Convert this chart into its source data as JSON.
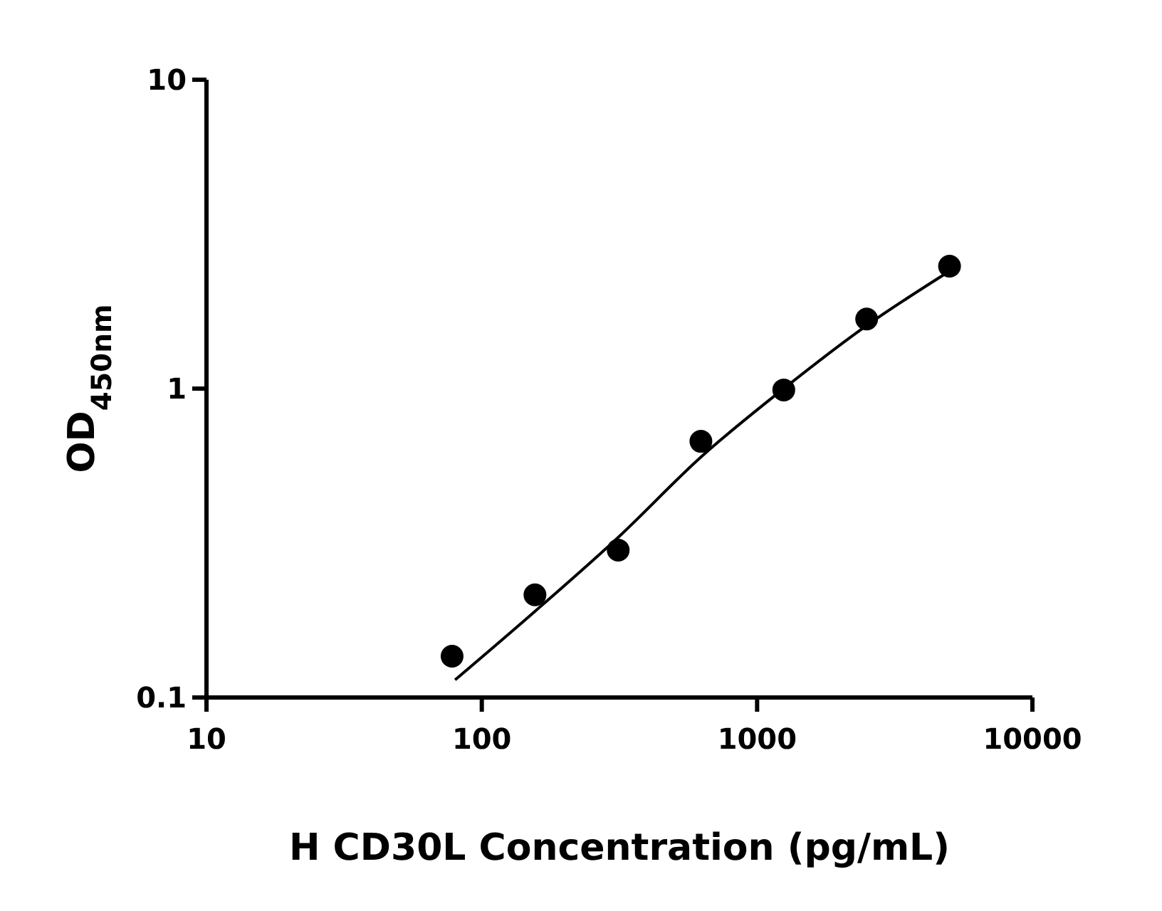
{
  "chart_data": {
    "type": "scatter",
    "xlabel": "H CD30L Concentration (pg/mL)",
    "ylabel": "OD$_{450nm}$",
    "log": "xy",
    "xlim": [
      10,
      10000
    ],
    "ylim": [
      0.1,
      10
    ],
    "xticks": [
      10,
      100,
      1000,
      10000
    ],
    "yticks": [
      0.1,
      1,
      10
    ],
    "grid": false,
    "x": [
      78,
      156,
      313,
      625,
      1250,
      2500,
      5000
    ],
    "series": [
      {
        "color": "#000000",
        "marker": "circle",
        "values": [
          0.136,
          0.215,
          0.3,
          0.675,
          0.99,
          1.68,
          2.49
        ]
      },
      {
        "type": "line",
        "color": "#000000",
        "marker": "none",
        "x": [
          80,
          156,
          313,
          625,
          1250,
          2500,
          5000
        ],
        "values": [
          0.114,
          0.19,
          0.33,
          0.6,
          1.0,
          1.6,
          2.4
        ]
      }
    ]
  }
}
